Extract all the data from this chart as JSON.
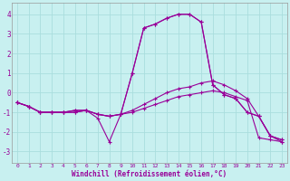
{
  "title": "Windchill (Refroidissement éolien,°C)",
  "bg_color": "#c8f0f0",
  "line_color": "#990099",
  "grid_color": "#aadddd",
  "xlim": [
    -0.5,
    23.5
  ],
  "ylim": [
    -3.6,
    4.6
  ],
  "yticks": [
    -3,
    -2,
    -1,
    0,
    1,
    2,
    3,
    4
  ],
  "xticks": [
    0,
    1,
    2,
    3,
    4,
    5,
    6,
    7,
    8,
    9,
    10,
    11,
    12,
    13,
    14,
    15,
    16,
    17,
    18,
    19,
    20,
    21,
    22,
    23
  ],
  "series": [
    {
      "y": [
        -0.5,
        -0.7,
        -1.0,
        -1.0,
        -1.0,
        -1.0,
        -0.9,
        -1.1,
        -1.2,
        -1.1,
        -1.0,
        -0.8,
        -0.6,
        -0.4,
        -0.2,
        -0.1,
        0.0,
        0.1,
        0.0,
        -0.2,
        -0.4,
        -2.3,
        -2.4,
        -2.5
      ]
    },
    {
      "y": [
        -0.5,
        -0.7,
        -1.0,
        -1.0,
        -1.0,
        -1.0,
        -0.9,
        -1.1,
        -1.2,
        -1.1,
        -0.9,
        -0.6,
        -0.3,
        0.0,
        0.2,
        0.3,
        0.5,
        0.6,
        0.4,
        0.1,
        -0.3,
        -1.2,
        -2.2,
        -2.5
      ]
    },
    {
      "y": [
        -0.5,
        -0.7,
        -1.0,
        -1.0,
        -1.0,
        -0.9,
        -0.9,
        -1.1,
        -1.2,
        -1.1,
        1.0,
        3.3,
        3.5,
        3.8,
        4.0,
        4.0,
        3.6,
        0.4,
        -0.1,
        -0.3,
        -1.0,
        -1.2,
        -2.2,
        -2.4
      ]
    },
    {
      "y": [
        -0.5,
        -0.7,
        -1.0,
        -1.0,
        -1.0,
        -0.9,
        -0.9,
        -1.3,
        -2.5,
        -1.1,
        1.0,
        3.3,
        3.5,
        3.8,
        4.0,
        4.0,
        3.6,
        0.4,
        -0.1,
        -0.3,
        -1.0,
        -1.2,
        -2.2,
        -2.4
      ]
    }
  ]
}
